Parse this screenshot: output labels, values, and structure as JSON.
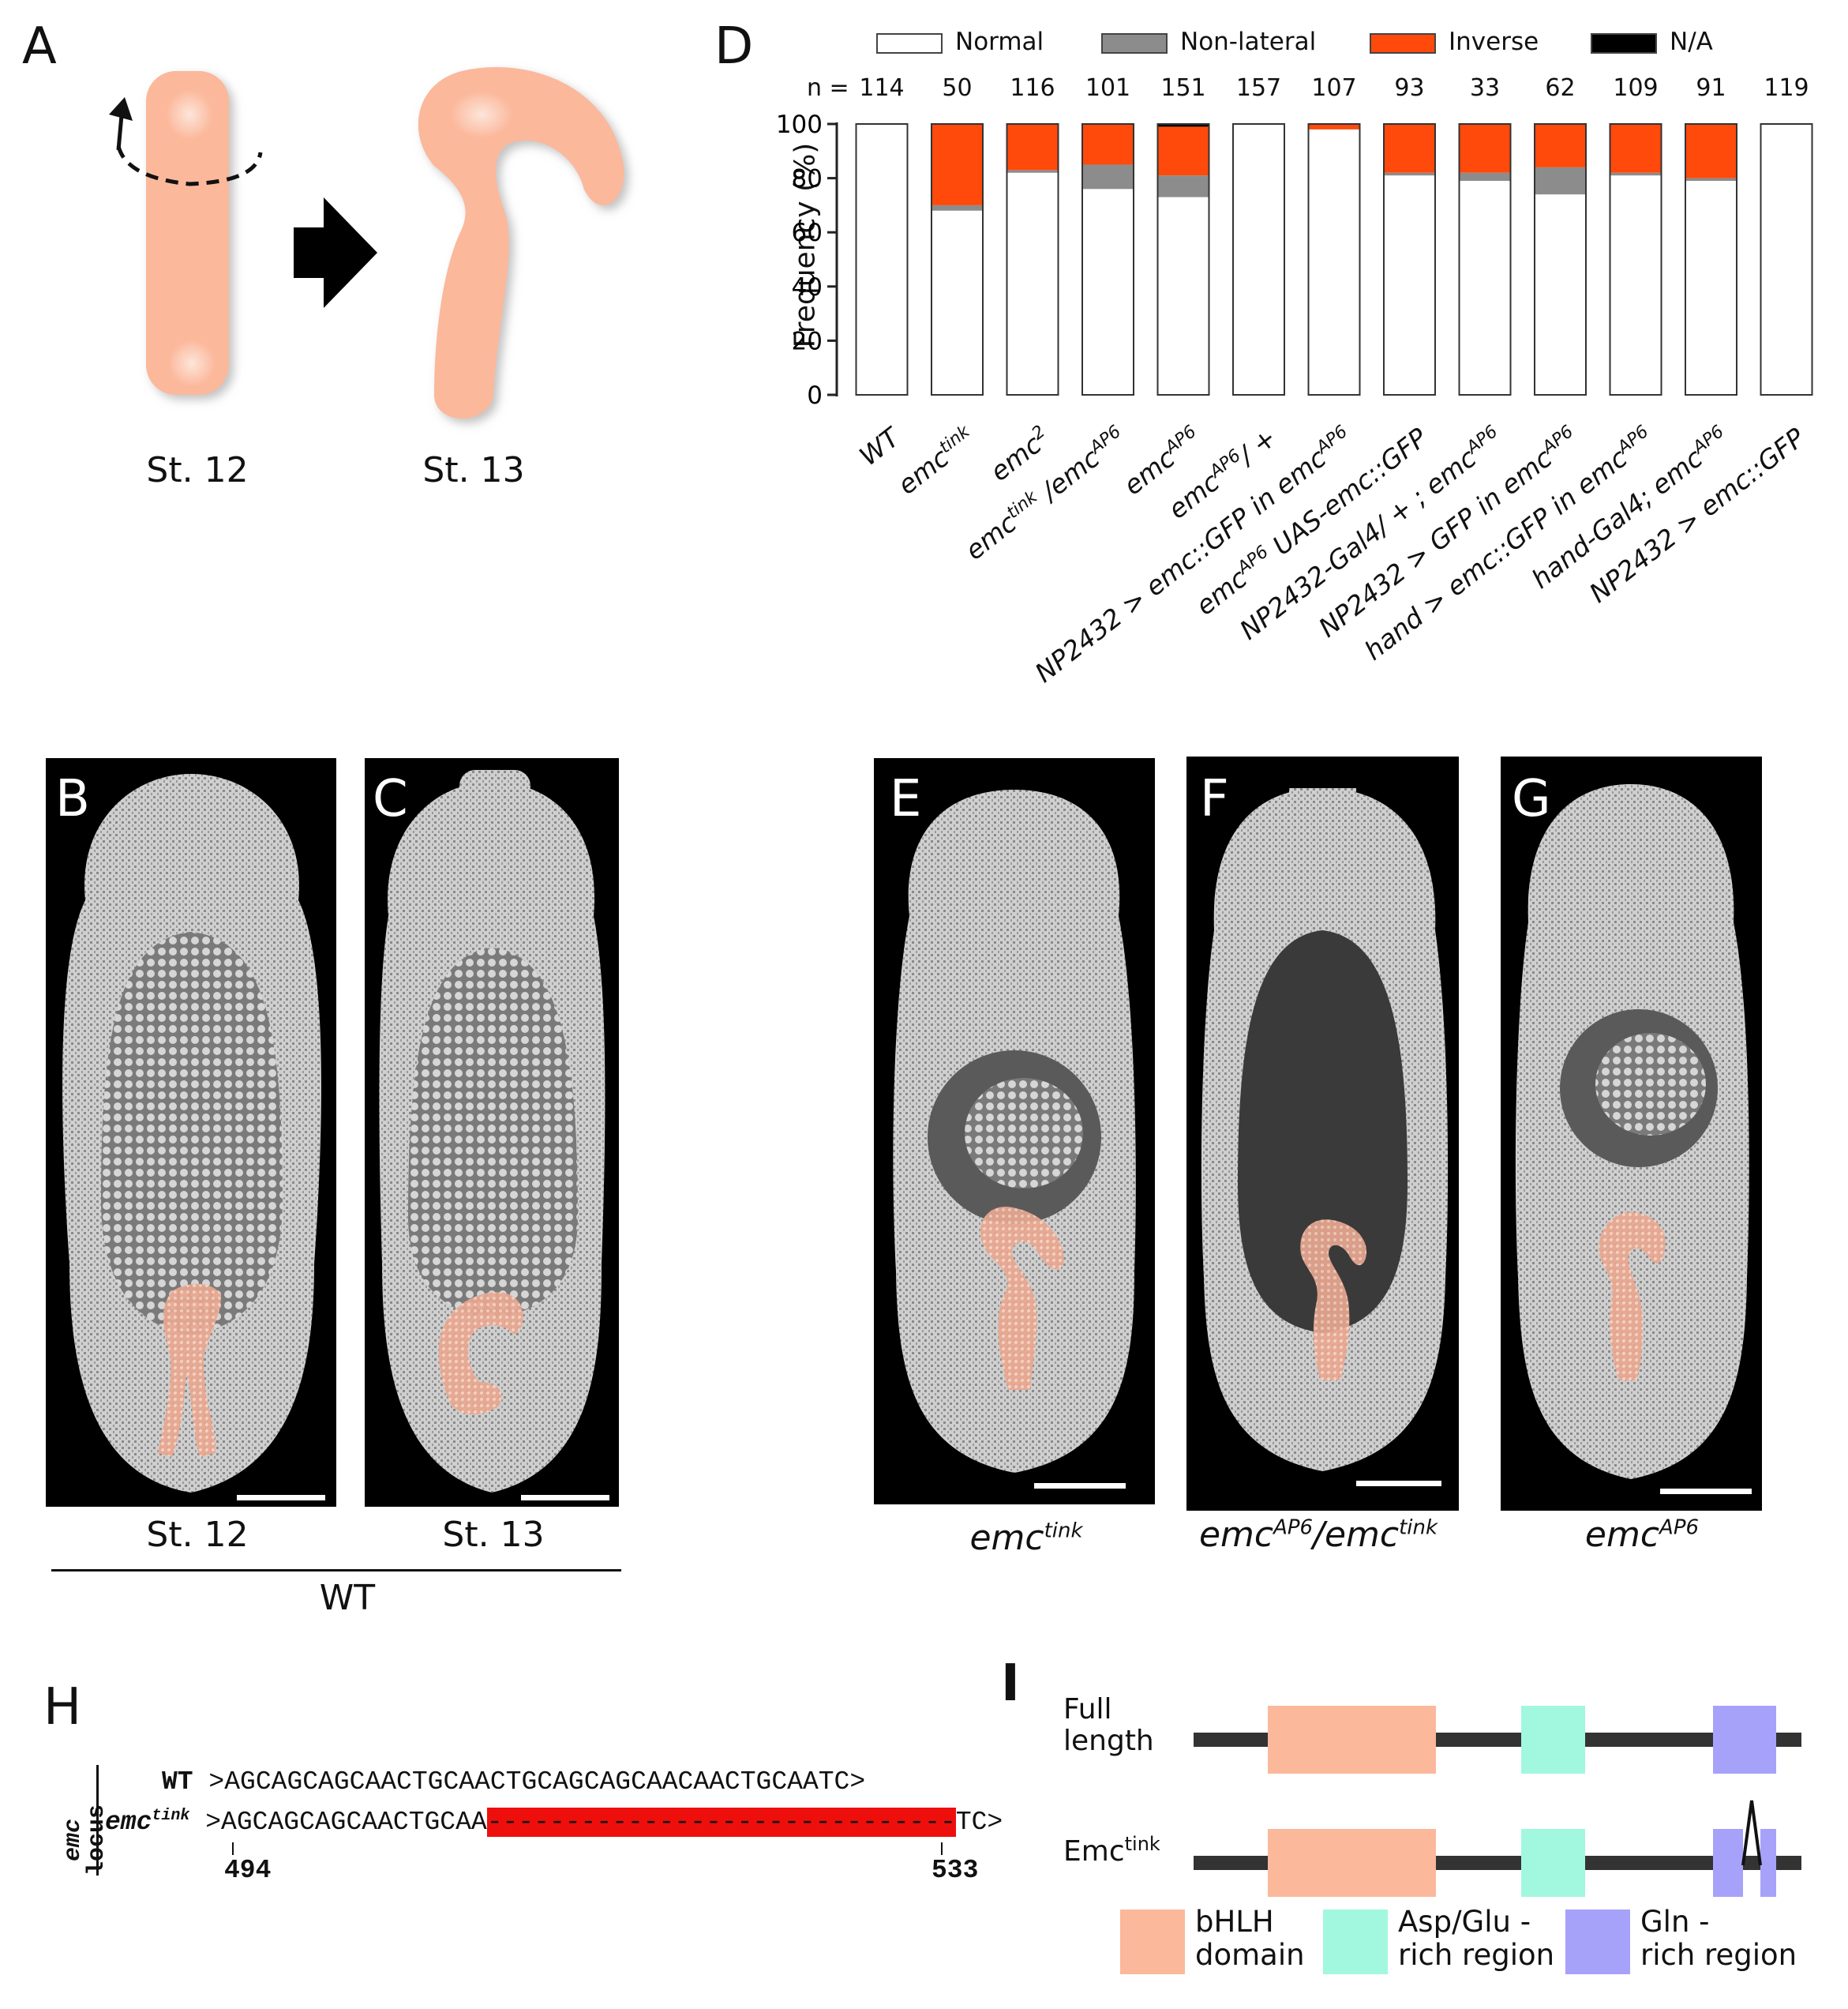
{
  "panels": {
    "A": {
      "label": "A",
      "stage_left": "St. 12",
      "stage_right": "St. 13"
    },
    "B": {
      "label": "B",
      "stage": "St. 12"
    },
    "C": {
      "label": "C",
      "stage": "St. 13"
    },
    "wt_label": "WT",
    "D": {
      "label": "D"
    },
    "E": {
      "label": "E",
      "genotype_base": "emc",
      "genotype_sup": "tink"
    },
    "F": {
      "label": "F",
      "genotype_a_base": "emc",
      "genotype_a_sup": "AP6",
      "genotype_sep": "/",
      "genotype_b_base": "emc",
      "genotype_b_sup": "tink"
    },
    "G": {
      "label": "G",
      "genotype_base": "emc",
      "genotype_sup": "AP6"
    },
    "H": {
      "label": "H",
      "locus_label_italic": "emc",
      "locus_label_word": "locus",
      "wt_name": "WT",
      "wt_seq": ">AGCAGCAGCAACTGCAACTGCAGCAGCAACAACTGCAATC>",
      "mut_name_base": "emc",
      "mut_name_sup": "tink",
      "mut_seq_start": ">AGCAGCAGCAACTGCAA",
      "mut_seq_deleted": "------------------------------",
      "mut_seq_end": "TC>",
      "pos_start": "494",
      "pos_end": "533"
    },
    "I": {
      "label": "I",
      "full_length_line1": "Full",
      "full_length_line2": "length",
      "mutant_base": "Emc",
      "mutant_sup": "tink",
      "legend": [
        {
          "line1": "bHLH",
          "line2": "domain",
          "color": "#fbb89b"
        },
        {
          "line1": "Asp/Glu -",
          "line2": "rich region",
          "color": "#a2f7df"
        },
        {
          "line1": "Gln -",
          "line2": "rich region",
          "color": "#a7a2f9"
        }
      ]
    }
  },
  "chart_data": {
    "type": "bar",
    "stacked": true,
    "ylabel": "Frequency (%)",
    "ylim": [
      0,
      100
    ],
    "yticks": [
      0,
      20,
      40,
      60,
      80,
      100
    ],
    "n_prefix": "n =",
    "legend_position": "top",
    "series_colors": {
      "Normal": "#ffffff",
      "Non-lateral": "#8c8c8c",
      "Inverse": "#ff4a0b",
      "N/A": "#000000"
    },
    "categories": [
      {
        "parts": [
          [
            "WT",
            ""
          ]
        ]
      },
      {
        "parts": [
          [
            "emc",
            "tink"
          ]
        ]
      },
      {
        "parts": [
          [
            "emc",
            "2"
          ]
        ]
      },
      {
        "parts": [
          [
            "emc",
            "tink"
          ],
          [
            " /emc",
            "AP6"
          ]
        ]
      },
      {
        "parts": [
          [
            "emc",
            "AP6"
          ]
        ]
      },
      {
        "parts": [
          [
            "emc",
            "AP6"
          ],
          [
            "/ +",
            ""
          ]
        ]
      },
      {
        "parts": [
          [
            "NP2432 > emc::GFP in emc",
            "AP6"
          ]
        ]
      },
      {
        "parts": [
          [
            "emc",
            "AP6"
          ],
          [
            " UAS-emc::GFP",
            ""
          ]
        ]
      },
      {
        "parts": [
          [
            "NP2432-Gal4/ + ; emc",
            "AP6"
          ]
        ]
      },
      {
        "parts": [
          [
            "NP2432 > GFP in emc",
            "AP6"
          ]
        ]
      },
      {
        "parts": [
          [
            "hand > emc::GFP in emc",
            "AP6"
          ]
        ]
      },
      {
        "parts": [
          [
            "hand-Gal4; emc",
            "AP6"
          ]
        ]
      },
      {
        "parts": [
          [
            "NP2432 > emc::GFP",
            ""
          ]
        ]
      }
    ],
    "n": [
      114,
      50,
      116,
      101,
      151,
      157,
      107,
      93,
      33,
      62,
      109,
      91,
      119
    ],
    "series": [
      {
        "name": "Normal",
        "values": [
          100,
          68,
          82,
          76,
          73,
          100,
          98,
          81,
          79,
          74,
          81,
          79,
          100
        ]
      },
      {
        "name": "Non-lateral",
        "values": [
          0,
          2,
          1,
          9,
          8,
          0,
          0,
          1,
          3,
          10,
          1,
          1,
          0
        ]
      },
      {
        "name": "Inverse",
        "values": [
          0,
          30,
          17,
          15,
          18,
          0,
          2,
          18,
          18,
          16,
          18,
          20,
          0
        ]
      },
      {
        "name": "N/A",
        "values": [
          0,
          0,
          0,
          0,
          1,
          0,
          0,
          0,
          0,
          0,
          0,
          0,
          0
        ]
      }
    ]
  }
}
